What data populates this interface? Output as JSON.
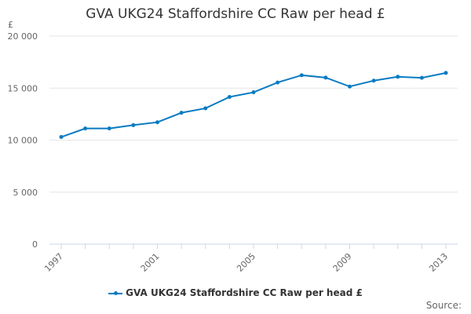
{
  "chart_data": {
    "type": "line",
    "title": "GVA UKG24 Staffordshire CC Raw per head £",
    "ylabel": "£",
    "xlabel": "",
    "x": [
      1997,
      1998,
      1999,
      2000,
      2001,
      2002,
      2003,
      2004,
      2005,
      2006,
      2007,
      2008,
      2009,
      2010,
      2011,
      2012,
      2013
    ],
    "series": [
      {
        "name": "GVA UKG24 Staffordshire CC Raw per head £",
        "color": "#0a7bc2",
        "values": [
          10300,
          11120,
          11120,
          11440,
          11720,
          12630,
          13060,
          14150,
          14600,
          15540,
          16240,
          16010,
          15150,
          15720,
          16090,
          15990,
          16460
        ]
      }
    ],
    "ylim": [
      0,
      20000
    ],
    "yticks": [
      0,
      5000,
      10000,
      15000,
      20000
    ],
    "ytick_labels": [
      "0",
      "5 000",
      "10 000",
      "15 000",
      "20 000"
    ],
    "xtick_labels": [
      "1997",
      "2001",
      "2005",
      "2009",
      "2013"
    ],
    "grid": true,
    "legend_position": "bottom-center",
    "source_label": "Source:"
  }
}
